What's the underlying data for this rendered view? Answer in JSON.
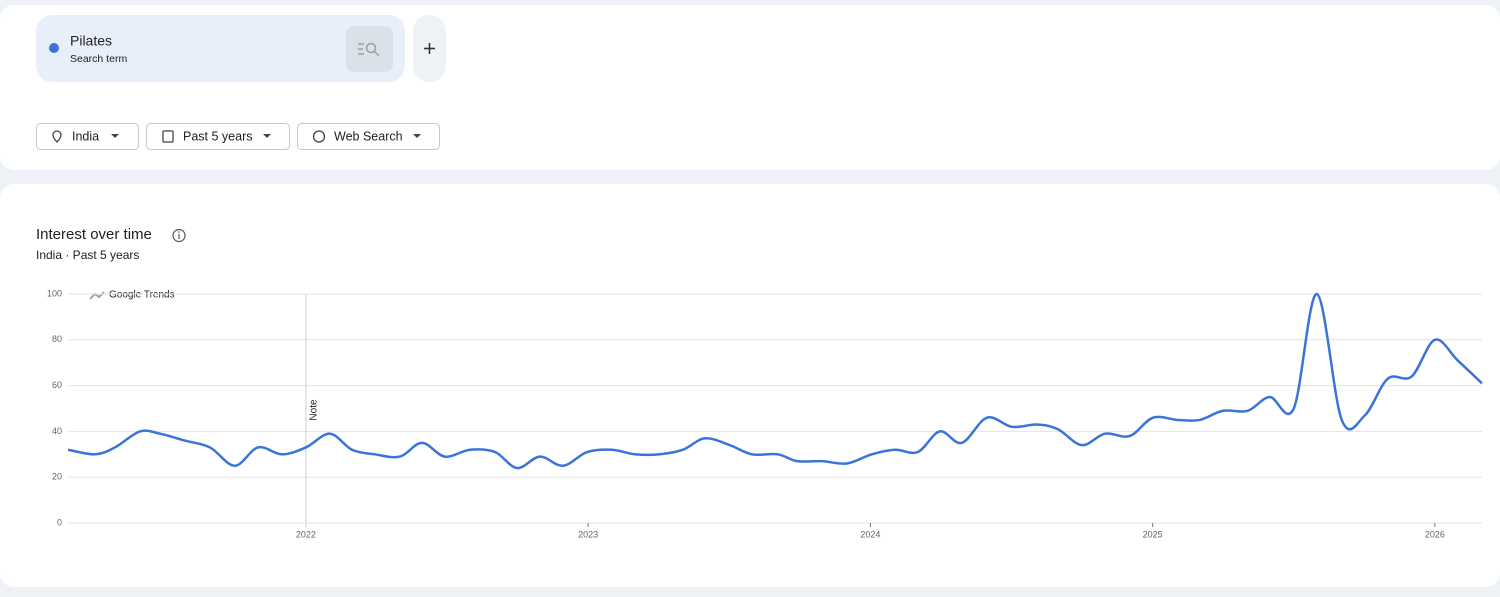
{
  "search": {
    "term_type": "Search term"
  },
  "filters": [
    "India",
    "Past 5 years",
    "Web Search"
  ],
  "chart_data": {
    "type": "line",
    "title": "Interest over time",
    "subtitle": "India · Past 5 years",
    "watermark": "Google Trends",
    "annotation": "Note",
    "x": [
      2021.157,
      2021.252,
      2021.323,
      2021.412,
      2021.483,
      2021.571,
      2021.66,
      2021.748,
      2021.83,
      2021.915,
      2022.0,
      2022.085,
      2022.163,
      2022.244,
      2022.333,
      2022.411,
      2022.492,
      2022.581,
      2022.67,
      2022.748,
      2022.829,
      2022.911,
      2022.996,
      2023.084,
      2023.166,
      2023.254,
      2023.336,
      2023.414,
      2023.502,
      2023.58,
      2023.672,
      2023.74,
      2023.828,
      2023.917,
      2024.005,
      2024.087,
      2024.168,
      2024.246,
      2024.324,
      2024.413,
      2024.501,
      2024.59,
      2024.664,
      2024.749,
      2024.831,
      2024.919,
      2025.001,
      2025.089,
      2025.167,
      2025.249,
      2025.337,
      2025.415,
      2025.5,
      2025.582,
      2025.67,
      2025.752,
      2025.833,
      2025.918,
      2026.0,
      2026.081,
      2026.167
    ],
    "series": [
      {
        "name": "Pilates",
        "color": "#3a74d9",
        "values": [
          32,
          30,
          33,
          40,
          39,
          36,
          33,
          25,
          33,
          30,
          33,
          39,
          32,
          30,
          29,
          35,
          29,
          32,
          31,
          24,
          29,
          25,
          31,
          32,
          30,
          30,
          32,
          37,
          34,
          30,
          30,
          27,
          27,
          26,
          30,
          32,
          31,
          40,
          35,
          46,
          42,
          43,
          41,
          34,
          39,
          38,
          46,
          45,
          45,
          49,
          49,
          55,
          50,
          100,
          45,
          47,
          63,
          64,
          80,
          71,
          61
        ]
      }
    ],
    "xlim": [
      2021.157,
      2026.167
    ],
    "ylim": [
      0,
      100
    ],
    "xticks": [
      2022,
      2023,
      2024,
      2025,
      2026
    ],
    "yticks": [
      0,
      20,
      40,
      60,
      80,
      100
    ],
    "grid": true
  }
}
